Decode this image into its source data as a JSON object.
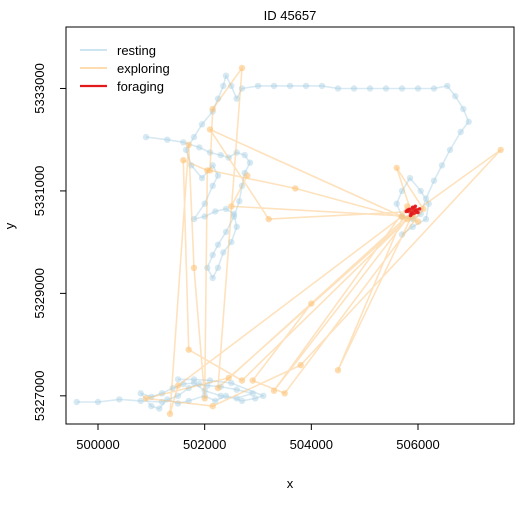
{
  "chart_data": {
    "type": "line",
    "title": "ID 45657",
    "xlabel": "x",
    "ylabel": "y",
    "xlim": [
      499400,
      507800
    ],
    "ylim": [
      5326450,
      5334200
    ],
    "x_ticks": [
      500000,
      502000,
      504000,
      506000
    ],
    "y_ticks": [
      5327000,
      5329000,
      5331000,
      5333000
    ],
    "x_tick_labels": [
      "500000",
      "502000",
      "504000",
      "506000"
    ],
    "y_tick_labels": [
      "5327000",
      "5329000",
      "5331000",
      "5333000"
    ],
    "legend": {
      "position": "top-left"
    },
    "series": [
      {
        "name": "resting",
        "color": "#A6CEE3",
        "points": [
          [
            499600,
            5326880
          ],
          [
            500000,
            5326880
          ],
          [
            500400,
            5326930
          ],
          [
            500800,
            5326900
          ],
          [
            501200,
            5326880
          ],
          [
            501500,
            5327000
          ],
          [
            501700,
            5327150
          ],
          [
            501900,
            5327230
          ],
          [
            502050,
            5327200
          ],
          [
            502300,
            5327180
          ],
          [
            502600,
            5327120
          ],
          [
            502900,
            5327050
          ],
          [
            502600,
            5326950
          ],
          [
            502300,
            5327000
          ],
          [
            502000,
            5327100
          ],
          [
            501800,
            5327250
          ],
          [
            501600,
            5327230
          ],
          [
            501400,
            5327150
          ],
          [
            501200,
            5327050
          ],
          [
            501000,
            5326980
          ],
          [
            500800,
            5327050
          ],
          [
            501000,
            5326800
          ],
          [
            501150,
            5326750
          ],
          [
            501300,
            5326930
          ],
          [
            501500,
            5326850
          ],
          [
            501700,
            5326900
          ],
          [
            502000,
            5327000
          ],
          [
            502200,
            5326900
          ],
          [
            502400,
            5327000
          ],
          [
            502700,
            5326900
          ],
          [
            502950,
            5326950
          ],
          [
            503100,
            5327000
          ],
          [
            502500,
            5327250
          ],
          [
            502100,
            5327300
          ],
          [
            501800,
            5327320
          ],
          [
            501500,
            5327320
          ]
        ],
        "points2": [
          [
            500900,
            5332050
          ],
          [
            501300,
            5332000
          ],
          [
            501600,
            5331950
          ],
          [
            501900,
            5331850
          ],
          [
            502100,
            5331750
          ],
          [
            502300,
            5331700
          ],
          [
            502450,
            5331650
          ],
          [
            502600,
            5331750
          ],
          [
            502750,
            5331700
          ],
          [
            502850,
            5331550
          ],
          [
            502750,
            5331350
          ],
          [
            502700,
            5331100
          ],
          [
            502650,
            5330800
          ],
          [
            502550,
            5330500
          ],
          [
            502400,
            5330200
          ],
          [
            502250,
            5329950
          ],
          [
            502150,
            5329750
          ],
          [
            502050,
            5329500
          ],
          [
            502150,
            5329300
          ],
          [
            502250,
            5329500
          ],
          [
            502350,
            5329800
          ],
          [
            502500,
            5330000
          ],
          [
            502600,
            5330300
          ],
          [
            502550,
            5330550
          ],
          [
            502400,
            5330650
          ],
          [
            502200,
            5330600
          ],
          [
            502000,
            5330500
          ],
          [
            501800,
            5330450
          ],
          [
            502000,
            5330750
          ],
          [
            502150,
            5331100
          ],
          [
            502250,
            5331300
          ],
          [
            502150,
            5331500
          ],
          [
            501950,
            5331250
          ],
          [
            501750,
            5331500
          ],
          [
            501650,
            5331800
          ],
          [
            501800,
            5332050
          ],
          [
            501950,
            5332300
          ],
          [
            502150,
            5332550
          ],
          [
            502250,
            5332800
          ],
          [
            502350,
            5333050
          ],
          [
            502400,
            5333250
          ],
          [
            502500,
            5333050
          ],
          [
            502600,
            5332800
          ],
          [
            502700,
            5333000
          ],
          [
            503000,
            5333050
          ],
          [
            503300,
            5333050
          ],
          [
            503600,
            5333050
          ],
          [
            503900,
            5333050
          ],
          [
            504200,
            5333050
          ],
          [
            504500,
            5333000
          ],
          [
            504800,
            5333000
          ],
          [
            505100,
            5333000
          ],
          [
            505400,
            5333000
          ],
          [
            505700,
            5333000
          ],
          [
            506000,
            5333000
          ],
          [
            506300,
            5333000
          ],
          [
            506550,
            5333050
          ],
          [
            506700,
            5332850
          ],
          [
            506850,
            5332600
          ],
          [
            506950,
            5332350
          ],
          [
            506800,
            5332150
          ],
          [
            506600,
            5331800
          ],
          [
            506450,
            5331500
          ],
          [
            506300,
            5331200
          ],
          [
            506150,
            5330850
          ],
          [
            506050,
            5330550
          ],
          [
            505900,
            5330450
          ],
          [
            505700,
            5330500
          ],
          [
            505600,
            5330750
          ],
          [
            505700,
            5331000
          ],
          [
            505850,
            5331250
          ],
          [
            506050,
            5331000
          ],
          [
            506200,
            5330750
          ],
          [
            506150,
            5330450
          ],
          [
            505900,
            5330300
          ],
          [
            505700,
            5330150
          ]
        ]
      },
      {
        "name": "exploring",
        "color": "#FDBF6F",
        "points": [
          [
            506000,
            5330400
          ],
          [
            503700,
            5331050
          ],
          [
            502100,
            5331400
          ],
          [
            502150,
            5332600
          ],
          [
            502700,
            5333400
          ],
          [
            502250,
            5327150
          ],
          [
            505900,
            5330600
          ],
          [
            503300,
            5327100
          ],
          [
            505800,
            5330700
          ],
          [
            504500,
            5327500
          ],
          [
            505900,
            5330550
          ],
          [
            502700,
            5327300
          ],
          [
            501700,
            5327900
          ],
          [
            501600,
            5331600
          ],
          [
            502050,
            5331400
          ],
          [
            502000,
            5326950
          ],
          [
            501800,
            5329500
          ],
          [
            501700,
            5331900
          ],
          [
            501350,
            5326650
          ],
          [
            501500,
            5327200
          ],
          [
            505700,
            5330500
          ],
          [
            502100,
            5332200
          ],
          [
            503200,
            5330450
          ],
          [
            505950,
            5330600
          ],
          [
            507550,
            5331800
          ],
          [
            503800,
            5327600
          ],
          [
            502150,
            5326800
          ],
          [
            500900,
            5326950
          ],
          [
            502450,
            5327350
          ],
          [
            505800,
            5330450
          ],
          [
            504000,
            5328800
          ],
          [
            502900,
            5327300
          ],
          [
            503500,
            5327050
          ],
          [
            506100,
            5330650
          ],
          [
            505600,
            5331450
          ],
          [
            505900,
            5330500
          ],
          [
            502500,
            5330700
          ],
          [
            502800,
            5331300
          ]
        ]
      },
      {
        "name": "foraging",
        "color": "#E31A1C",
        "points": [
          [
            505800,
            5330620
          ],
          [
            505900,
            5330680
          ],
          [
            506000,
            5330580
          ],
          [
            505860,
            5330520
          ],
          [
            505950,
            5330700
          ],
          [
            505830,
            5330640
          ],
          [
            506030,
            5330650
          ],
          [
            505880,
            5330560
          ],
          [
            505780,
            5330600
          ],
          [
            505960,
            5330610
          ]
        ]
      }
    ]
  }
}
